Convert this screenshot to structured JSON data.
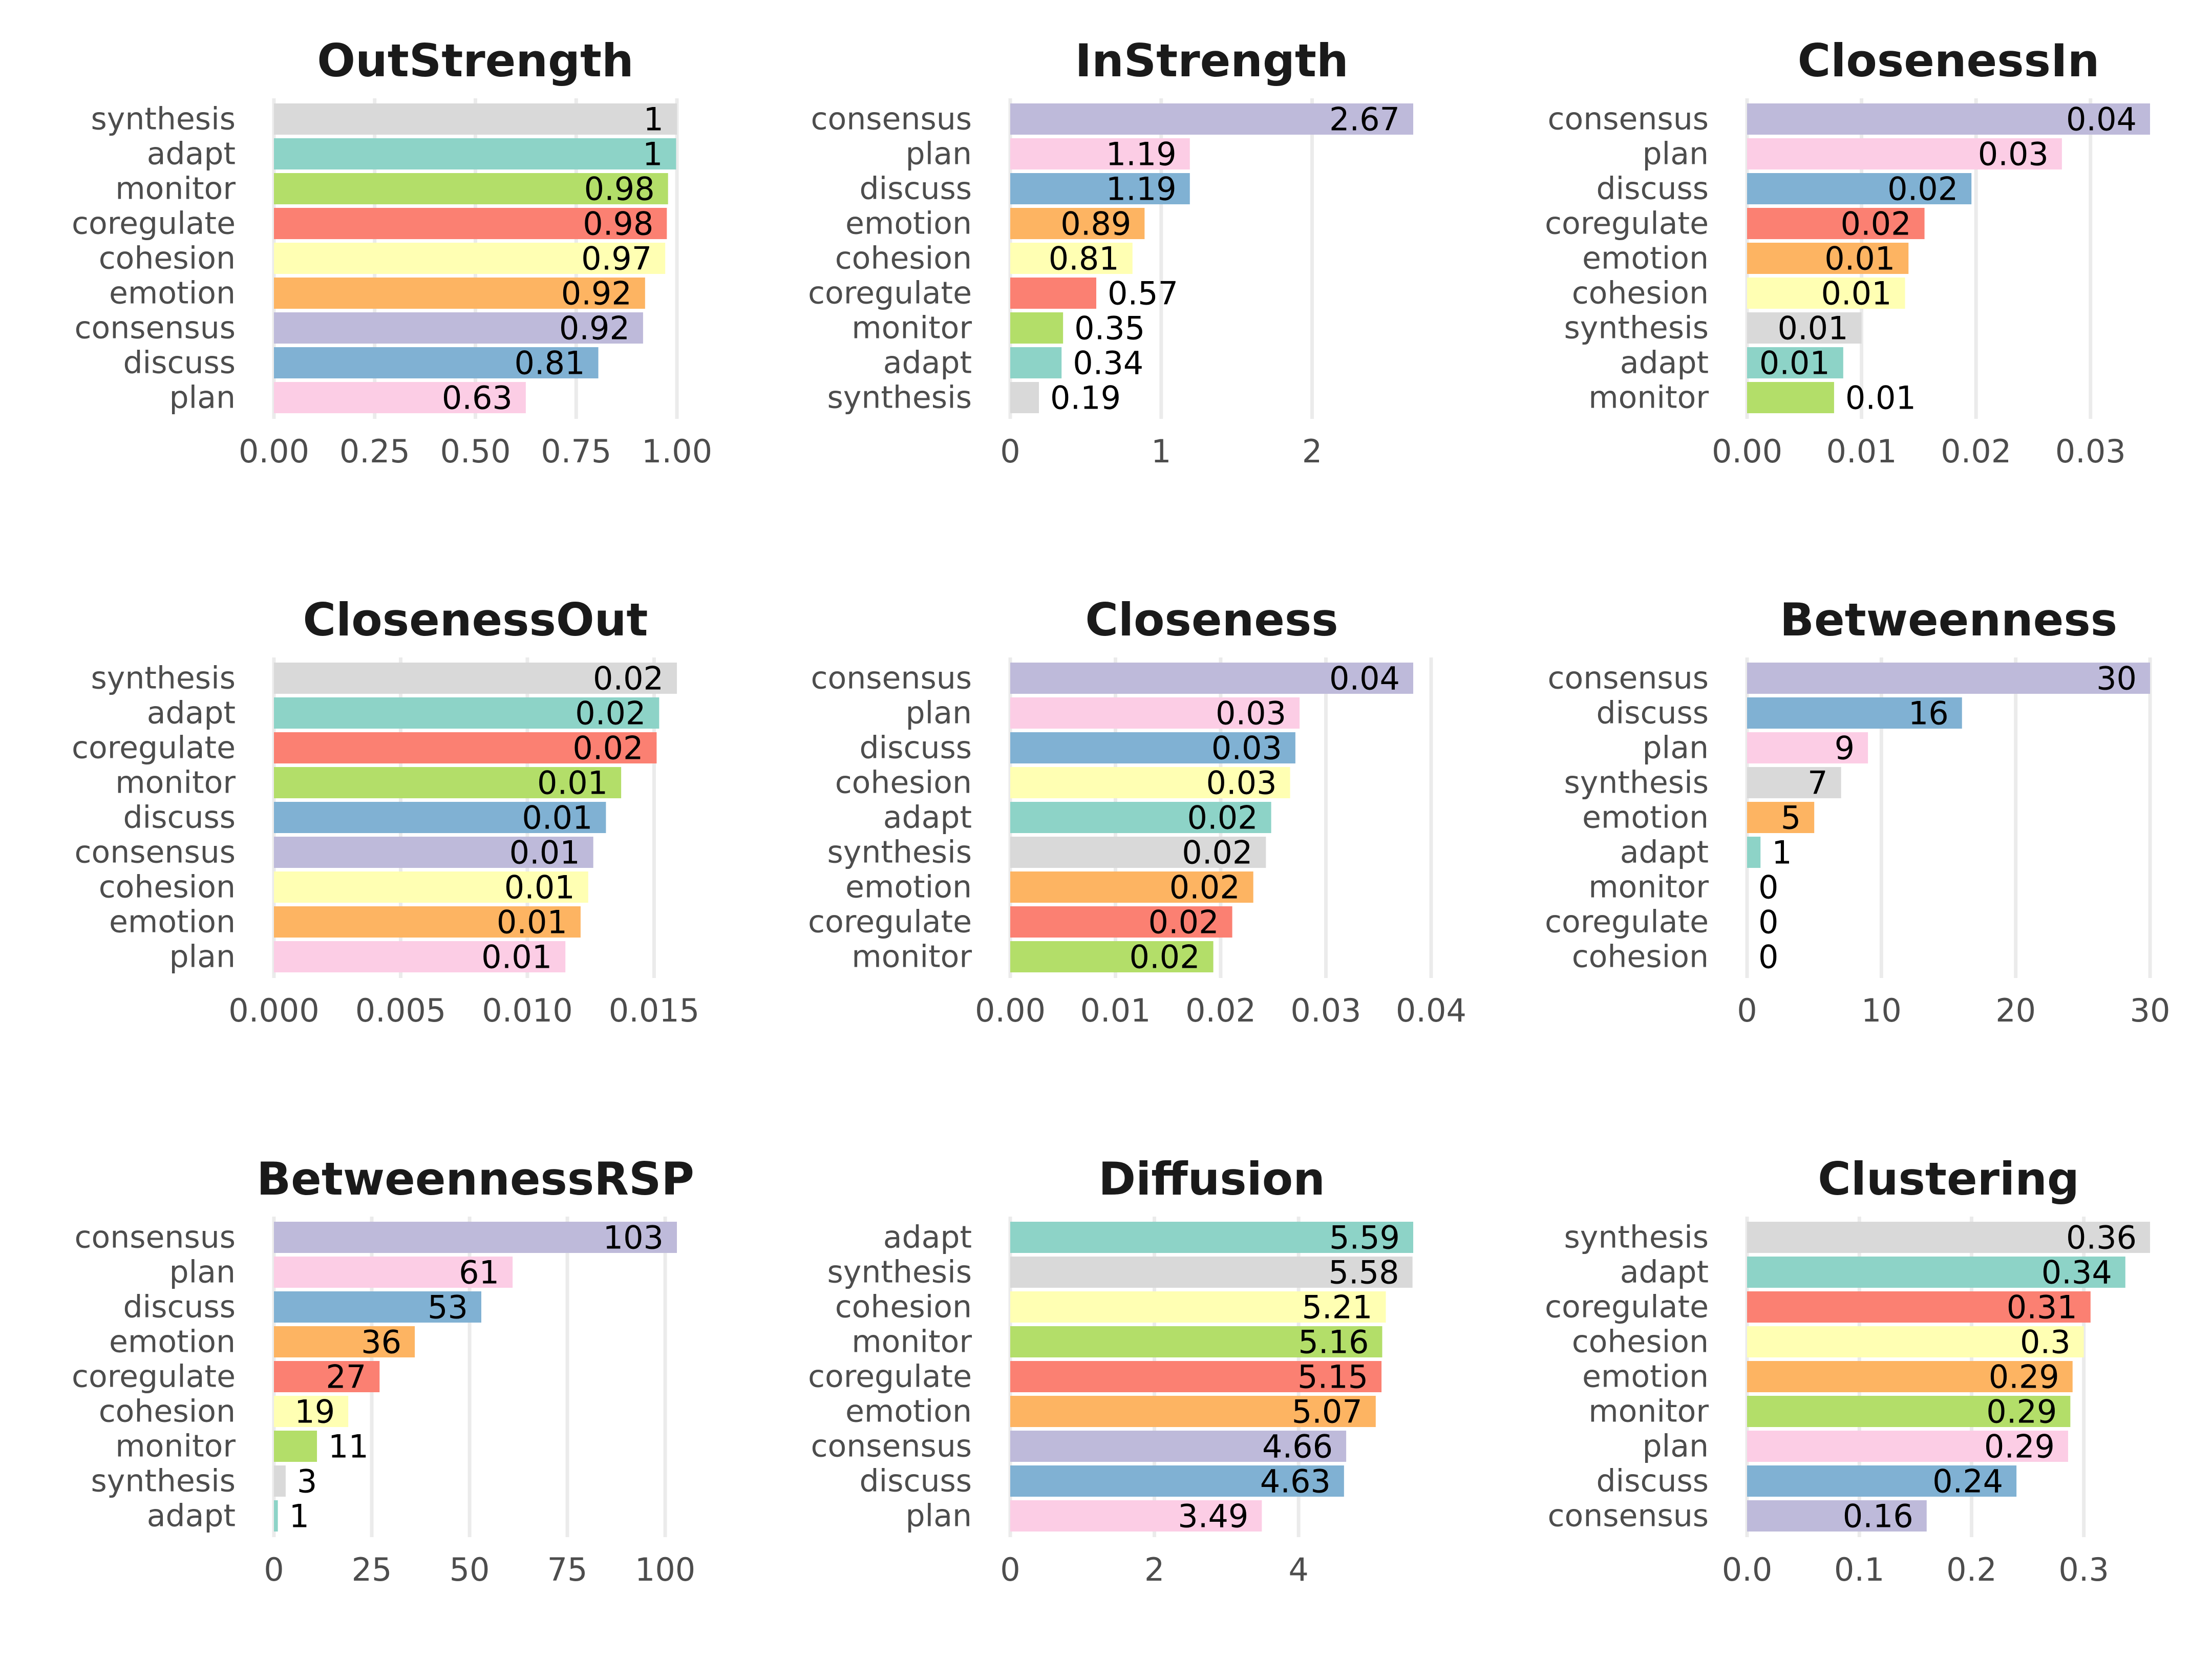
{
  "figure": {
    "layout": "3x3 grid of horizontal bar charts",
    "colors": {
      "synthesis": "#D9D9D9",
      "adapt": "#8DD3C7",
      "monitor": "#B3DE69",
      "coregulate": "#FB8072",
      "cohesion": "#FFFFB3",
      "emotion": "#FDB462",
      "consensus": "#BEBADA",
      "discuss": "#80B1D3",
      "plan": "#FCCDE5"
    }
  },
  "chart_data": [
    {
      "type": "bar",
      "orientation": "horizontal",
      "title": "OutStrength",
      "xlabel": "",
      "ylabel": "",
      "categories": [
        "synthesis",
        "adapt",
        "monitor",
        "coregulate",
        "cohesion",
        "emotion",
        "consensus",
        "discuss",
        "plan"
      ],
      "values": [
        1.0,
        0.998,
        0.978,
        0.975,
        0.971,
        0.921,
        0.916,
        0.805,
        0.625
      ],
      "labels": [
        "1",
        "1",
        "0.98",
        "0.98",
        "0.97",
        "0.92",
        "0.92",
        "0.81",
        "0.63"
      ],
      "xlim": [
        0,
        1.0
      ],
      "ticks": [
        0,
        0.25,
        0.5,
        0.75,
        1.0
      ],
      "tick_labels": [
        "0.00",
        "0.25",
        "0.50",
        "0.75",
        "1.00"
      ],
      "grid": true,
      "legend": "none"
    },
    {
      "type": "bar",
      "orientation": "horizontal",
      "title": "InStrength",
      "xlabel": "",
      "ylabel": "",
      "categories": [
        "consensus",
        "plan",
        "discuss",
        "emotion",
        "cohesion",
        "coregulate",
        "monitor",
        "adapt",
        "synthesis"
      ],
      "values": [
        2.67,
        1.19,
        1.19,
        0.89,
        0.81,
        0.57,
        0.35,
        0.34,
        0.19
      ],
      "labels": [
        "2.67",
        "1.19",
        "1.19",
        "0.89",
        "0.81",
        "0.57",
        "0.35",
        "0.34",
        "0.19"
      ],
      "xlim": [
        0,
        2.67
      ],
      "ticks": [
        0,
        1,
        2
      ],
      "tick_labels": [
        "0",
        "1",
        "2"
      ],
      "grid": true,
      "legend": "none"
    },
    {
      "type": "bar",
      "orientation": "horizontal",
      "title": "ClosenessIn",
      "xlabel": "",
      "ylabel": "",
      "categories": [
        "consensus",
        "plan",
        "discuss",
        "coregulate",
        "emotion",
        "cohesion",
        "synthesis",
        "adapt",
        "monitor"
      ],
      "values": [
        0.0352,
        0.0275,
        0.0196,
        0.0155,
        0.0141,
        0.0138,
        0.01,
        0.0084,
        0.0076
      ],
      "labels": [
        "0.04",
        "0.03",
        "0.02",
        "0.02",
        "0.01",
        "0.01",
        "0.01",
        "0.01",
        "0.01"
      ],
      "xlim": [
        0,
        0.0352
      ],
      "ticks": [
        0,
        0.01,
        0.02,
        0.03
      ],
      "tick_labels": [
        "0.00",
        "0.01",
        "0.02",
        "0.03"
      ],
      "grid": true,
      "legend": "none"
    },
    {
      "type": "bar",
      "orientation": "horizontal",
      "title": "ClosenessOut",
      "xlabel": "",
      "ylabel": "",
      "categories": [
        "synthesis",
        "adapt",
        "coregulate",
        "monitor",
        "discuss",
        "consensus",
        "cohesion",
        "emotion",
        "plan"
      ],
      "values": [
        0.0159,
        0.0152,
        0.0151,
        0.0137,
        0.0131,
        0.0126,
        0.0124,
        0.0121,
        0.0115
      ],
      "labels": [
        "0.02",
        "0.02",
        "0.02",
        "0.01",
        "0.01",
        "0.01",
        "0.01",
        "0.01",
        "0.01"
      ],
      "xlim": [
        0,
        0.0159
      ],
      "ticks": [
        0,
        0.005,
        0.01,
        0.015
      ],
      "tick_labels": [
        "0.000",
        "0.005",
        "0.010",
        "0.015"
      ],
      "grid": true,
      "legend": "none"
    },
    {
      "type": "bar",
      "orientation": "horizontal",
      "title": "Closeness",
      "xlabel": "",
      "ylabel": "",
      "categories": [
        "consensus",
        "plan",
        "discuss",
        "cohesion",
        "adapt",
        "synthesis",
        "emotion",
        "coregulate",
        "monitor"
      ],
      "values": [
        0.0383,
        0.0275,
        0.0271,
        0.0266,
        0.0248,
        0.0243,
        0.0231,
        0.0211,
        0.0193
      ],
      "labels": [
        "0.04",
        "0.03",
        "0.03",
        "0.03",
        "0.02",
        "0.02",
        "0.02",
        "0.02",
        "0.02"
      ],
      "xlim": [
        0,
        0.0383
      ],
      "ticks": [
        0,
        0.01,
        0.02,
        0.03,
        0.04
      ],
      "tick_labels": [
        "0.00",
        "0.01",
        "0.02",
        "0.03",
        "0.04"
      ],
      "grid": true,
      "legend": "none"
    },
    {
      "type": "bar",
      "orientation": "horizontal",
      "title": "Betweenness",
      "xlabel": "",
      "ylabel": "",
      "categories": [
        "consensus",
        "discuss",
        "plan",
        "synthesis",
        "emotion",
        "adapt",
        "monitor",
        "coregulate",
        "cohesion"
      ],
      "values": [
        30,
        16,
        9,
        7,
        5,
        1,
        0,
        0,
        0
      ],
      "labels": [
        "30",
        "16",
        "9",
        "7",
        "5",
        "1",
        "0",
        "0",
        "0"
      ],
      "xlim": [
        0,
        30
      ],
      "ticks": [
        0,
        10,
        20,
        30
      ],
      "tick_labels": [
        "0",
        "10",
        "20",
        "30"
      ],
      "grid": true,
      "legend": "none"
    },
    {
      "type": "bar",
      "orientation": "horizontal",
      "title": "BetweennessRSP",
      "xlabel": "",
      "ylabel": "",
      "categories": [
        "consensus",
        "plan",
        "discuss",
        "emotion",
        "coregulate",
        "cohesion",
        "monitor",
        "synthesis",
        "adapt"
      ],
      "values": [
        103,
        61,
        53,
        36,
        27,
        19,
        11,
        3,
        1
      ],
      "labels": [
        "103",
        "61",
        "53",
        "36",
        "27",
        "19",
        "11",
        "3",
        "1"
      ],
      "xlim": [
        0,
        103
      ],
      "ticks": [
        0,
        25,
        50,
        75,
        100
      ],
      "tick_labels": [
        "0",
        "25",
        "50",
        "75",
        "100"
      ],
      "grid": true,
      "legend": "none"
    },
    {
      "type": "bar",
      "orientation": "horizontal",
      "title": "Diffusion",
      "xlabel": "",
      "ylabel": "",
      "categories": [
        "adapt",
        "synthesis",
        "cohesion",
        "monitor",
        "coregulate",
        "emotion",
        "consensus",
        "discuss",
        "plan"
      ],
      "values": [
        5.59,
        5.58,
        5.21,
        5.16,
        5.15,
        5.07,
        4.66,
        4.63,
        3.49
      ],
      "labels": [
        "5.59",
        "5.58",
        "5.21",
        "5.16",
        "5.15",
        "5.07",
        "4.66",
        "4.63",
        "3.49"
      ],
      "xlim": [
        0,
        5.59
      ],
      "ticks": [
        0,
        2,
        4
      ],
      "tick_labels": [
        "0",
        "2",
        "4"
      ],
      "grid": true,
      "legend": "none"
    },
    {
      "type": "bar",
      "orientation": "horizontal",
      "title": "Clustering",
      "xlabel": "",
      "ylabel": "",
      "categories": [
        "synthesis",
        "adapt",
        "coregulate",
        "cohesion",
        "emotion",
        "monitor",
        "plan",
        "discuss",
        "consensus"
      ],
      "values": [
        0.359,
        0.337,
        0.306,
        0.3,
        0.29,
        0.288,
        0.286,
        0.24,
        0.16
      ],
      "labels": [
        "0.36",
        "0.34",
        "0.31",
        "0.3",
        "0.29",
        "0.29",
        "0.29",
        "0.24",
        "0.16"
      ],
      "xlim": [
        0,
        0.359
      ],
      "ticks": [
        0,
        0.1,
        0.2,
        0.3
      ],
      "tick_labels": [
        "0.0",
        "0.1",
        "0.2",
        "0.3"
      ],
      "grid": true,
      "legend": "none"
    }
  ]
}
